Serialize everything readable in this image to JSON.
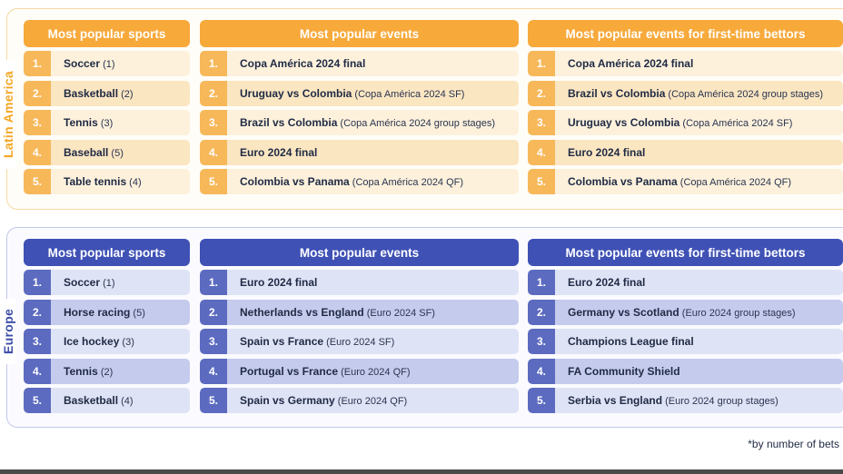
{
  "regions": {
    "latam": {
      "label": "Latin America",
      "headers": {
        "sports": "Most popular sports",
        "events": "Most popular events",
        "first_time": "Most popular events for first-time bettors"
      },
      "sports": [
        {
          "n": "1.",
          "name": "Soccer",
          "ext": " (1)"
        },
        {
          "n": "2.",
          "name": "Basketball",
          "ext": " (2)"
        },
        {
          "n": "3.",
          "name": "Tennis",
          "ext": " (3)"
        },
        {
          "n": "4.",
          "name": "Baseball",
          "ext": " (5)"
        },
        {
          "n": "5.",
          "name": "Table tennis",
          "ext": " (4)"
        }
      ],
      "events": [
        {
          "n": "1.",
          "name": "Copa América 2024 final",
          "ext": ""
        },
        {
          "n": "2.",
          "name": "Uruguay vs Colombia",
          "ext": " (Copa América 2024 SF)"
        },
        {
          "n": "3.",
          "name": "Brazil vs Colombia",
          "ext": " (Copa América 2024 group stages)"
        },
        {
          "n": "4.",
          "name": "Euro 2024 final",
          "ext": ""
        },
        {
          "n": "5.",
          "name": "Colombia vs Panama",
          "ext": " (Copa América 2024 QF)"
        }
      ],
      "first_time": [
        {
          "n": "1.",
          "name": "Copa América 2024 final",
          "ext": ""
        },
        {
          "n": "2.",
          "name": "Brazil vs Colombia",
          "ext": " (Copa América 2024 group stages)"
        },
        {
          "n": "3.",
          "name": "Uruguay vs Colombia",
          "ext": " (Copa América 2024 SF)"
        },
        {
          "n": "4.",
          "name": "Euro 2024 final",
          "ext": ""
        },
        {
          "n": "5.",
          "name": "Colombia vs Panama",
          "ext": " (Copa América 2024 QF)"
        }
      ]
    },
    "europe": {
      "label": "Europe",
      "headers": {
        "sports": "Most popular sports",
        "events": "Most popular events",
        "first_time": "Most popular events for first-time bettors"
      },
      "sports": [
        {
          "n": "1.",
          "name": "Soccer",
          "ext": " (1)"
        },
        {
          "n": "2.",
          "name": "Horse racing",
          "ext": " (5)"
        },
        {
          "n": "3.",
          "name": "Ice hockey",
          "ext": " (3)"
        },
        {
          "n": "4.",
          "name": "Tennis",
          "ext": " (2)"
        },
        {
          "n": "5.",
          "name": "Basketball",
          "ext": " (4)"
        }
      ],
      "events": [
        {
          "n": "1.",
          "name": "Euro 2024 final",
          "ext": ""
        },
        {
          "n": "2.",
          "name": "Netherlands vs England",
          "ext": " (Euro 2024 SF)"
        },
        {
          "n": "3.",
          "name": "Spain vs France",
          "ext": " (Euro 2024 SF)"
        },
        {
          "n": "4.",
          "name": "Portugal vs France",
          "ext": " (Euro 2024 QF)"
        },
        {
          "n": "5.",
          "name": "Spain vs Germany",
          "ext": " (Euro 2024 QF)"
        }
      ],
      "first_time": [
        {
          "n": "1.",
          "name": "Euro 2024 final",
          "ext": ""
        },
        {
          "n": "2.",
          "name": "Germany vs Scotland",
          "ext": " (Euro 2024 group stages)"
        },
        {
          "n": "3.",
          "name": "Champions League final",
          "ext": ""
        },
        {
          "n": "4.",
          "name": "FA Community Shield",
          "ext": ""
        },
        {
          "n": "5.",
          "name": "Serbia vs England",
          "ext": " (Euro 2024 group stages)"
        }
      ]
    }
  },
  "footnote": "*by number of bets",
  "colors": {
    "latam_accent": "#f7a93a",
    "europe_accent": "#3f51b5"
  }
}
